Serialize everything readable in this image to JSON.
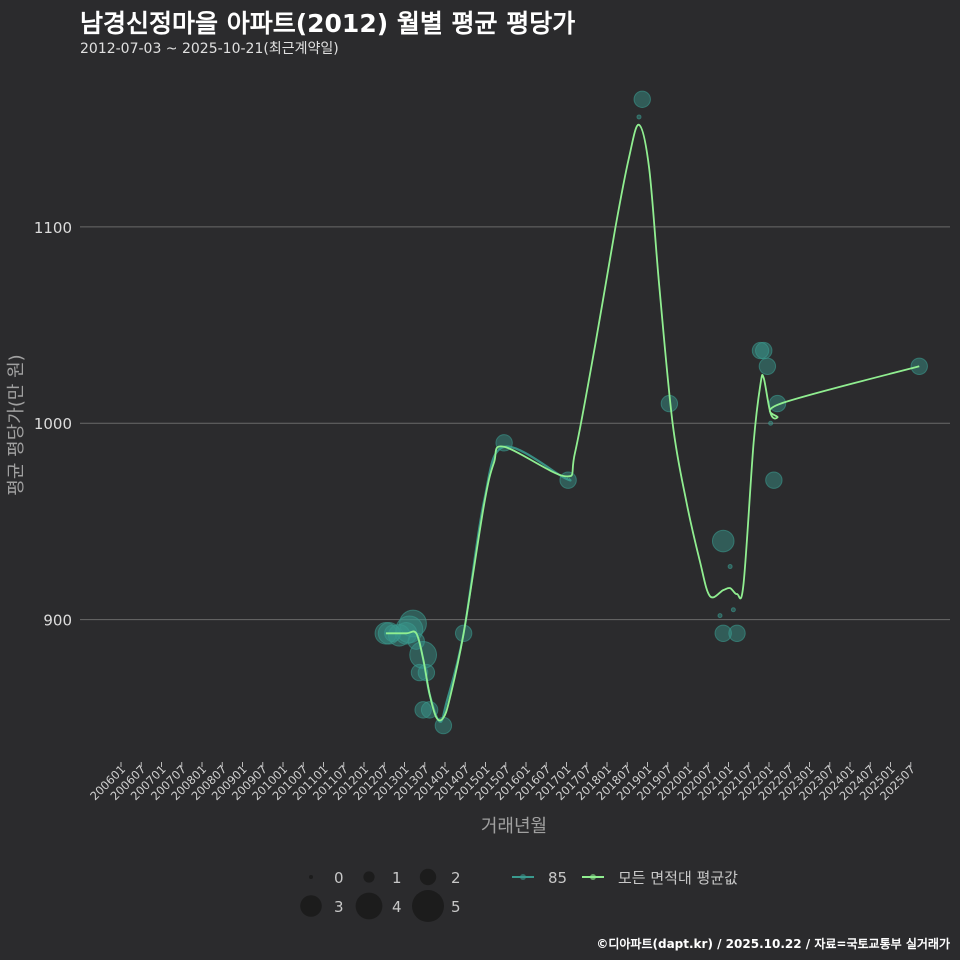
{
  "header": {
    "title": "남경신정마을 아파트(2012) 월별 평균 평당가",
    "subtitle": "2012-07-03 ~ 2025-10-21(최근계약일)"
  },
  "footer": {
    "credit": "©디아파트(dapt.kr) / 2025.10.22 / 자료=국토교통부 실거래가"
  },
  "colors": {
    "background": "#2b2b2d",
    "series_85": "#3a9a8e",
    "series_all": "#90ee90",
    "grid": "#6a6a6a"
  },
  "chart_data": {
    "type": "line",
    "title": "남경신정마을 아파트(2012) 월별 평균 평당가",
    "xlabel": "거래년월",
    "ylabel": "평균 평당가(만 원)",
    "ylim": [
      830,
      1185
    ],
    "yticks": [
      900,
      1000,
      1100
    ],
    "xticks": [
      "200601",
      "200607",
      "200701",
      "200707",
      "200801",
      "200807",
      "200901",
      "200907",
      "201001",
      "201007",
      "201101",
      "201107",
      "201201",
      "201207",
      "201301",
      "201307",
      "201401",
      "201407",
      "201501",
      "201507",
      "201601",
      "201607",
      "201701",
      "201707",
      "201801",
      "201807",
      "201901",
      "201907",
      "202001",
      "202007",
      "202101",
      "202107",
      "202201",
      "202207",
      "202301",
      "202307",
      "202401",
      "202407",
      "202501",
      "202507"
    ],
    "legend_size": {
      "labels": [
        "0",
        "1",
        "2",
        "3",
        "4",
        "5"
      ]
    },
    "series": [
      {
        "name": "85",
        "kind": "points",
        "points": [
          {
            "x": 2012.54,
            "y": 893,
            "size": 3
          },
          {
            "x": 2012.62,
            "y": 893,
            "size": 3
          },
          {
            "x": 2012.71,
            "y": 893,
            "size": 2
          },
          {
            "x": 2012.87,
            "y": 892,
            "size": 3
          },
          {
            "x": 2013.04,
            "y": 893,
            "size": 3
          },
          {
            "x": 2013.12,
            "y": 895,
            "size": 4
          },
          {
            "x": 2013.21,
            "y": 898,
            "size": 4
          },
          {
            "x": 2013.29,
            "y": 889,
            "size": 2
          },
          {
            "x": 2013.37,
            "y": 873,
            "size": 2
          },
          {
            "x": 2013.46,
            "y": 882,
            "size": 4
          },
          {
            "x": 2013.54,
            "y": 873,
            "size": 2
          },
          {
            "x": 2013.46,
            "y": 854,
            "size": 2
          },
          {
            "x": 2013.62,
            "y": 854,
            "size": 2
          },
          {
            "x": 2013.96,
            "y": 846,
            "size": 2
          },
          {
            "x": 2014.46,
            "y": 893,
            "size": 2
          },
          {
            "x": 2015.46,
            "y": 990,
            "size": 2
          },
          {
            "x": 2017.04,
            "y": 971,
            "size": 2
          },
          {
            "x": 2018.87,
            "y": 1165,
            "size": 2
          },
          {
            "x": 2018.79,
            "y": 1156,
            "size": 0
          },
          {
            "x": 2019.54,
            "y": 1010,
            "size": 2
          },
          {
            "x": 2020.79,
            "y": 902,
            "size": 0
          },
          {
            "x": 2020.87,
            "y": 893,
            "size": 2
          },
          {
            "x": 2020.87,
            "y": 940,
            "size": 3
          },
          {
            "x": 2021.04,
            "y": 927,
            "size": 0
          },
          {
            "x": 2021.12,
            "y": 905,
            "size": 0
          },
          {
            "x": 2021.21,
            "y": 893,
            "size": 2
          },
          {
            "x": 2021.79,
            "y": 1037,
            "size": 2
          },
          {
            "x": 2021.87,
            "y": 1037,
            "size": 2
          },
          {
            "x": 2021.96,
            "y": 1029,
            "size": 2
          },
          {
            "x": 2022.04,
            "y": 1000,
            "size": 0
          },
          {
            "x": 2022.12,
            "y": 971,
            "size": 2
          },
          {
            "x": 2022.21,
            "y": 1010,
            "size": 2
          },
          {
            "x": 2025.71,
            "y": 1029,
            "size": 2
          }
        ],
        "line": [
          [
            2012.54,
            893
          ],
          [
            2013.04,
            893
          ],
          [
            2013.29,
            893
          ],
          [
            2013.46,
            880
          ],
          [
            2013.62,
            862
          ],
          [
            2013.87,
            848
          ],
          [
            2014.04,
            858
          ],
          [
            2014.46,
            893
          ],
          [
            2014.96,
            960
          ],
          [
            2015.46,
            988
          ],
          [
            2016.96,
            972
          ],
          [
            2017.04,
            972
          ]
        ]
      },
      {
        "name": "모든 면적대 평균값",
        "kind": "line",
        "line": [
          [
            2012.54,
            893
          ],
          [
            2013.04,
            893
          ],
          [
            2013.29,
            893
          ],
          [
            2013.46,
            880
          ],
          [
            2013.62,
            862
          ],
          [
            2013.79,
            850
          ],
          [
            2013.96,
            850
          ],
          [
            2014.12,
            860
          ],
          [
            2014.46,
            893
          ],
          [
            2014.96,
            958
          ],
          [
            2015.21,
            980
          ],
          [
            2015.46,
            988
          ],
          [
            2016.96,
            973
          ],
          [
            2017.21,
            985
          ],
          [
            2017.71,
            1040
          ],
          [
            2018.21,
            1100
          ],
          [
            2018.54,
            1135
          ],
          [
            2018.79,
            1152
          ],
          [
            2019.04,
            1130
          ],
          [
            2019.29,
            1070
          ],
          [
            2019.62,
            1000
          ],
          [
            2019.96,
            960
          ],
          [
            2020.29,
            930
          ],
          [
            2020.54,
            912
          ],
          [
            2020.87,
            915
          ],
          [
            2021.04,
            916
          ],
          [
            2021.21,
            913
          ],
          [
            2021.37,
            918
          ],
          [
            2021.62,
            990
          ],
          [
            2021.79,
            1020
          ],
          [
            2021.87,
            1023
          ],
          [
            2022.04,
            1005
          ],
          [
            2022.21,
            1003
          ],
          [
            2022.29,
            1010
          ],
          [
            2025.71,
            1029
          ]
        ]
      }
    ]
  }
}
